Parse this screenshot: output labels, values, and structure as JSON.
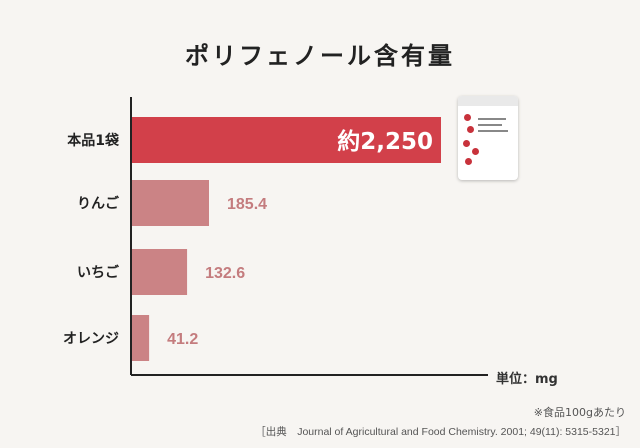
{
  "title": "ポリフェノール含有量",
  "unit_label": "単位：mg",
  "note": "※食品100gあたり",
  "source": "［出典　Journal of Agricultural and Food Chemistry. 2001; 49(11): 5315-5321］",
  "colors": {
    "highlight_bar": "#d2404a",
    "other_bar": "#cb8385",
    "value_label": "#c47c7e",
    "axis": "#222222"
  },
  "chart_data": {
    "type": "bar",
    "orientation": "horizontal",
    "title": "ポリフェノール含有量",
    "xlabel": "単位：mg",
    "ylabel": "",
    "categories": [
      "本品1袋",
      "りんご",
      "いちご",
      "オレンジ"
    ],
    "values": [
      2250,
      185.4,
      132.6,
      41.2
    ],
    "value_labels": [
      "約2,250",
      "185.4",
      "132.6",
      "41.2"
    ],
    "highlight_index": 0,
    "grid": false,
    "legend": "none"
  },
  "product_image": {
    "icon": "product-package-icon"
  }
}
